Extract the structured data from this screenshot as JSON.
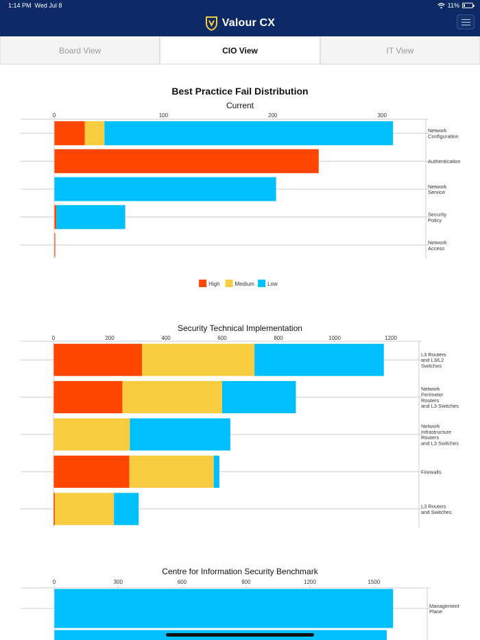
{
  "status_bar": {
    "time": "1:14 PM",
    "date": "Wed Jul 8",
    "battery": "11%",
    "battery_level": 0.11
  },
  "header": {
    "brand": "Valour CX",
    "icons": [
      "shield-logo-icon",
      "hamburger-menu-icon",
      "wifi-icon",
      "battery-icon"
    ]
  },
  "tabs": [
    {
      "label": "Board View",
      "active": false
    },
    {
      "label": "CIO View",
      "active": true
    },
    {
      "label": "IT View",
      "active": false
    }
  ],
  "colors": {
    "high": "#ff4500",
    "medium": "#f7cd3f",
    "low": "#00bfff",
    "nav": "#0d2a66",
    "grid": "#cccccc"
  },
  "legend": [
    "High",
    "Medium",
    "Low"
  ],
  "chart_data": [
    {
      "type": "bar",
      "orientation": "horizontal",
      "stacked": true,
      "title": "Best Practice Fail Distribution",
      "subtitle": "Current",
      "categories": [
        [
          "Network",
          "Configuration"
        ],
        [
          "Authentication"
        ],
        [
          "Network",
          "Service"
        ],
        [
          "Security",
          "Policy"
        ],
        [
          "Network",
          "Access"
        ]
      ],
      "series": [
        {
          "name": "High",
          "values": [
            28,
            242,
            0,
            2,
            1
          ]
        },
        {
          "name": "Medium",
          "values": [
            18,
            0,
            0,
            0,
            0
          ]
        },
        {
          "name": "Low",
          "values": [
            264,
            0,
            203,
            63,
            0
          ]
        }
      ],
      "xlim": [
        0,
        340
      ],
      "ticks": [
        0,
        100,
        200,
        300
      ],
      "grid": true,
      "legend_position": "bottom"
    },
    {
      "type": "bar",
      "orientation": "horizontal",
      "stacked": true,
      "title": "",
      "subtitle": "Security Technical Implementation",
      "categories": [
        [
          "L3 Routers",
          "and L3/L2",
          "Switches"
        ],
        [
          "Network",
          "Perimeter",
          "Routers",
          "and L3 Switches"
        ],
        [
          "Network",
          "Infrastructure",
          "Routers",
          "and L3 Switches"
        ],
        [
          "Firewalls"
        ],
        [
          "L3 Routers",
          "and Switches"
        ]
      ],
      "series": [
        {
          "name": "High",
          "values": [
            315,
            245,
            0,
            270,
            5
          ]
        },
        {
          "name": "Medium",
          "values": [
            400,
            355,
            272,
            300,
            210
          ]
        },
        {
          "name": "Low",
          "values": [
            460,
            262,
            357,
            20,
            88
          ]
        }
      ],
      "xlim": [
        0,
        1300
      ],
      "ticks": [
        0,
        200,
        400,
        600,
        800,
        1000,
        1200
      ],
      "grid": true,
      "legend_position": "none"
    },
    {
      "type": "bar",
      "orientation": "horizontal",
      "stacked": true,
      "title": "",
      "subtitle": "Centre for Information Security Benchmark",
      "categories": [
        [
          "Management",
          "Plane"
        ],
        [
          ""
        ]
      ],
      "series": [
        {
          "name": "High",
          "values": [
            0,
            0
          ]
        },
        {
          "name": "Medium",
          "values": [
            0,
            0
          ]
        },
        {
          "name": "Low",
          "values": [
            1590,
            1560
          ]
        }
      ],
      "xlim": [
        0,
        1750
      ],
      "ticks": [
        0,
        300,
        600,
        900,
        1200,
        1500
      ],
      "grid": true,
      "legend_position": "none"
    }
  ]
}
